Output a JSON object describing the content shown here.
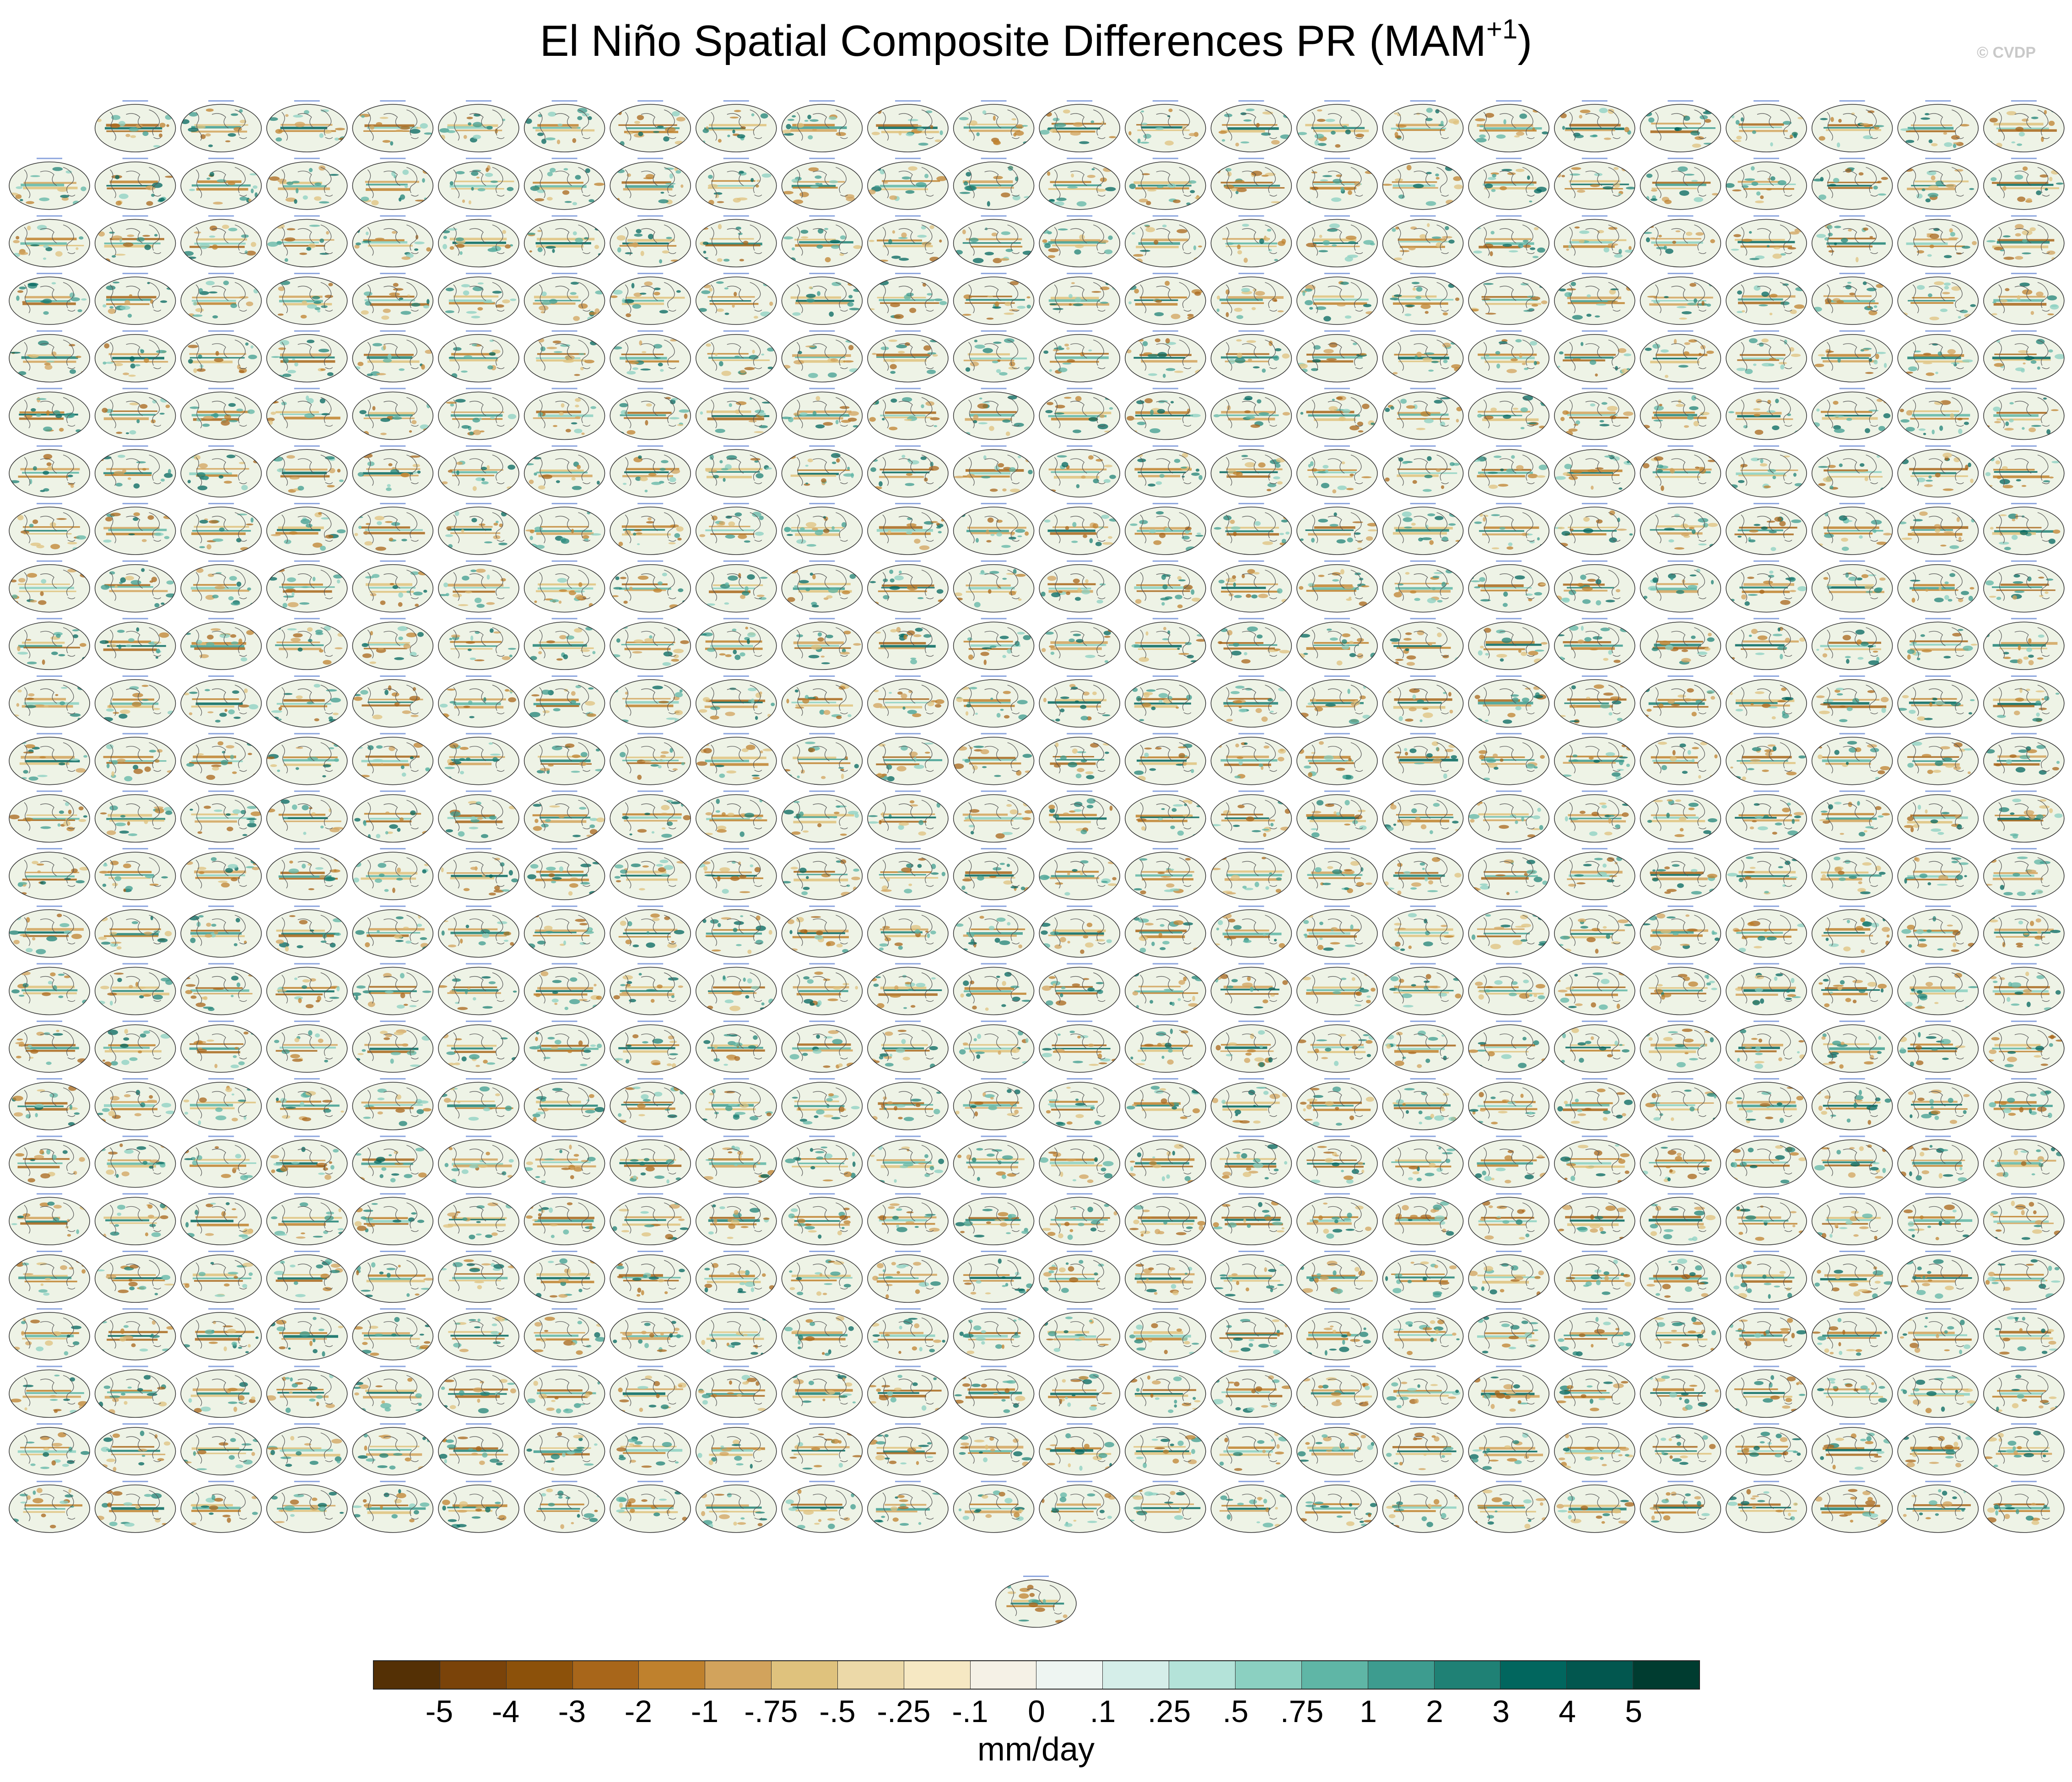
{
  "figure": {
    "title": "El Niño Spatial Composite Differences PR (MAM",
    "title_superscript": "+1",
    "title_close": ")",
    "credit": "© CVDP"
  },
  "chart_data": {
    "type": "heatmap",
    "description_grid": {
      "rows": 25,
      "cols": 24,
      "first_row_panels": 23,
      "total_panels": 600
    },
    "colorbar": {
      "units": "mm/day",
      "tick_labels": [
        "-5",
        "-4",
        "-3",
        "-2",
        "-1",
        "-.75",
        "-.5",
        "-.25",
        "-.1",
        "0",
        ".1",
        ".25",
        ".5",
        ".75",
        "1",
        "2",
        "3",
        "4",
        "5"
      ],
      "colors": [
        "#543005",
        "#7a4309",
        "#8c510a",
        "#a8661a",
        "#bf812d",
        "#d2a35c",
        "#dfc27d",
        "#ecd9a8",
        "#f6e8c3",
        "#f5f1e6",
        "#eef5f2",
        "#d5eee9",
        "#b4e3d9",
        "#8bd0c1",
        "#5fb6a6",
        "#3d9c8f",
        "#1f8175",
        "#01665e",
        "#02574f",
        "#003c30"
      ]
    }
  }
}
